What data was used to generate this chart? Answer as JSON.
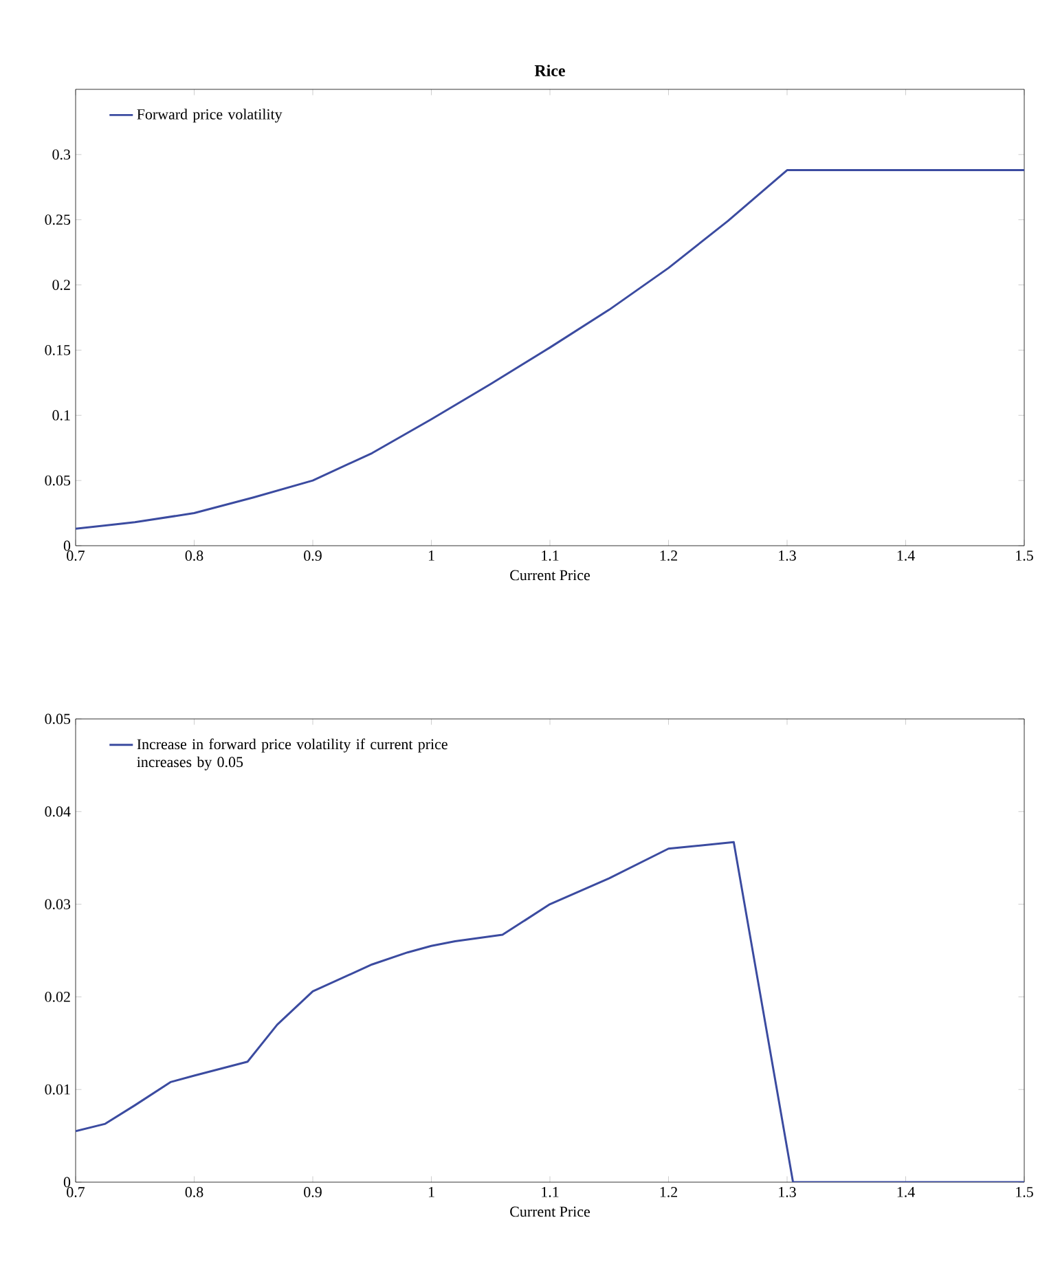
{
  "chart_data": [
    {
      "type": "line",
      "title": "Rice",
      "xlabel": "Current Price",
      "xlim": [
        0.7,
        1.5
      ],
      "xticks": [
        0.7,
        0.8,
        0.9,
        1,
        1.1,
        1.2,
        1.3,
        1.4,
        1.5
      ],
      "ylim": [
        0,
        0.35
      ],
      "yticks": [
        0,
        0.05,
        0.1,
        0.15,
        0.2,
        0.25,
        0.3
      ],
      "legend": "top left",
      "series": [
        {
          "name": "Forward price volatility",
          "color": "#3b4ba0",
          "x": [
            0.7,
            0.75,
            0.8,
            0.85,
            0.9,
            0.95,
            1.0,
            1.05,
            1.1,
            1.15,
            1.2,
            1.25,
            1.3,
            1.4,
            1.5
          ],
          "values": [
            0.013,
            0.018,
            0.025,
            0.037,
            0.05,
            0.071,
            0.097,
            0.124,
            0.152,
            0.181,
            0.213,
            0.249,
            0.288,
            0.288,
            0.288
          ]
        }
      ]
    },
    {
      "type": "line",
      "xlabel": "Current Price",
      "xlim": [
        0.7,
        1.5
      ],
      "xticks": [
        0.7,
        0.8,
        0.9,
        1,
        1.1,
        1.2,
        1.3,
        1.4,
        1.5
      ],
      "ylim": [
        0,
        0.05
      ],
      "yticks": [
        0,
        0.01,
        0.02,
        0.03,
        0.04,
        0.05
      ],
      "legend": "top left",
      "series": [
        {
          "name": "Increase in forward price volatility if current price increases by 0.05",
          "color": "#3b4ba0",
          "x": [
            0.7,
            0.725,
            0.75,
            0.78,
            0.8,
            0.845,
            0.87,
            0.9,
            0.95,
            0.98,
            1.0,
            1.02,
            1.06,
            1.1,
            1.15,
            1.2,
            1.255,
            1.305,
            1.4,
            1.5
          ],
          "values": [
            0.0055,
            0.0063,
            0.0083,
            0.0108,
            0.0115,
            0.013,
            0.017,
            0.0206,
            0.0235,
            0.0248,
            0.0255,
            0.026,
            0.0267,
            0.03,
            0.0328,
            0.036,
            0.0367,
            0,
            0,
            0
          ]
        }
      ]
    }
  ]
}
